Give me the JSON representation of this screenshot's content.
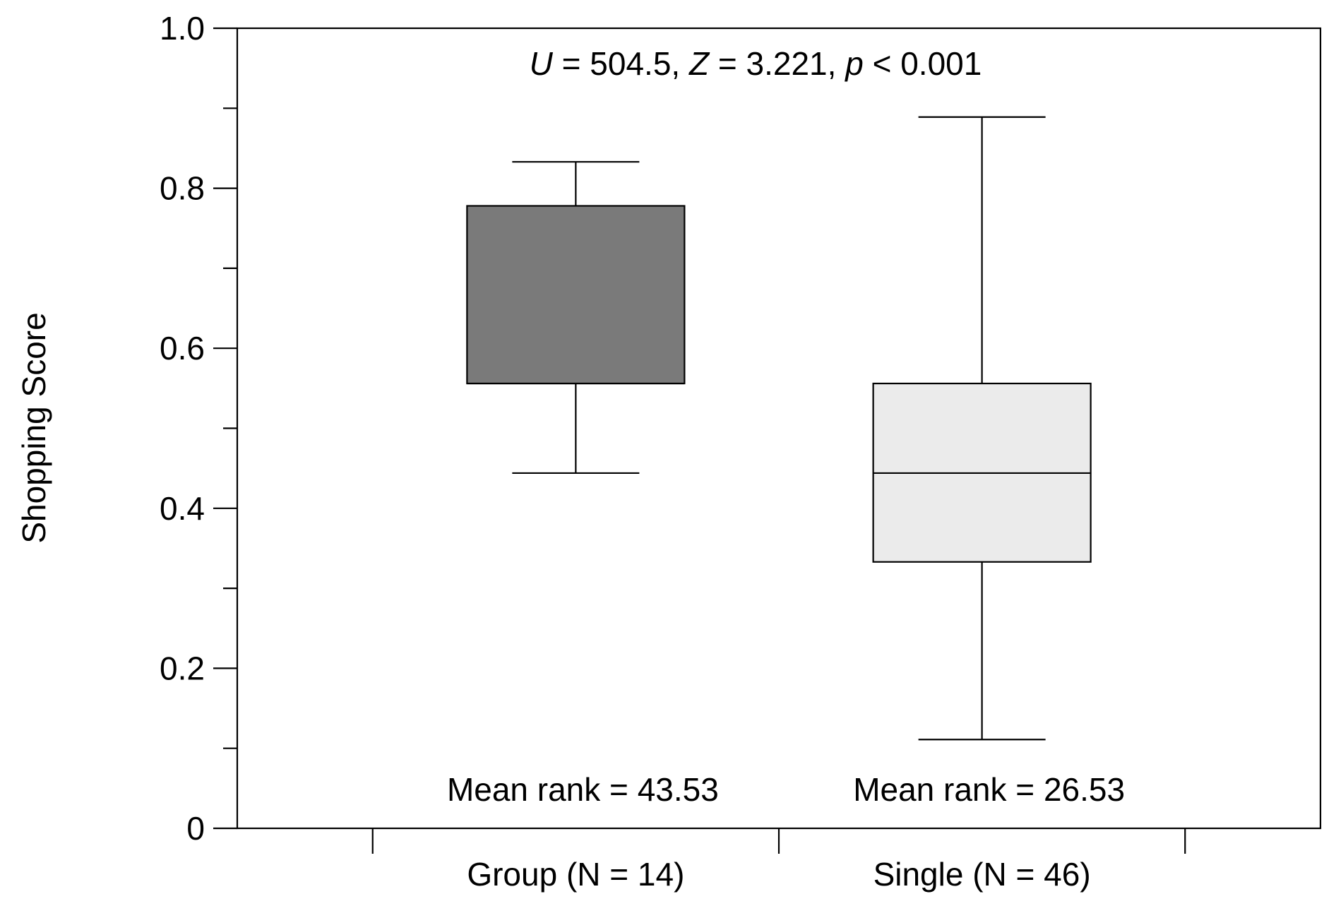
{
  "chart_data": {
    "type": "box",
    "title": "",
    "ylabel": "Shopping Score",
    "xlabel": "",
    "ylim": [
      0,
      1.0
    ],
    "yticks": [
      0,
      0.2,
      0.4,
      0.6,
      0.8,
      1.0
    ],
    "ytick_labels": [
      "0",
      "0.2",
      "0.4",
      "0.6",
      "0.8",
      "1.0"
    ],
    "yminor_ticks": [
      0.1,
      0.3,
      0.5,
      0.7,
      0.9
    ],
    "grid": false,
    "legend": "none",
    "xaxis_tick_positions": [
      0.25,
      1.0,
      1.75
    ],
    "statistic": {
      "U_symbol": "U",
      "U_text": " = 504.5, ",
      "Z_symbol": "Z",
      "Z_text": " = 3.221, ",
      "p_symbol": "p",
      "p_text": " < 0.001"
    },
    "boxes": [
      {
        "category": "Group (N = 14)",
        "position": 0.625,
        "whisker_low": 0.444,
        "q1": 0.556,
        "median": 0.556,
        "q3": 0.778,
        "whisker_high": 0.833,
        "fill": "#7a7a7a",
        "note": "Mean rank = 43.53"
      },
      {
        "category": "Single (N = 46)",
        "position": 1.375,
        "whisker_low": 0.111,
        "q1": 0.333,
        "median": 0.444,
        "q3": 0.556,
        "whisker_high": 0.889,
        "fill": "#ebebeb",
        "note": "Mean rank = 26.53"
      }
    ]
  }
}
